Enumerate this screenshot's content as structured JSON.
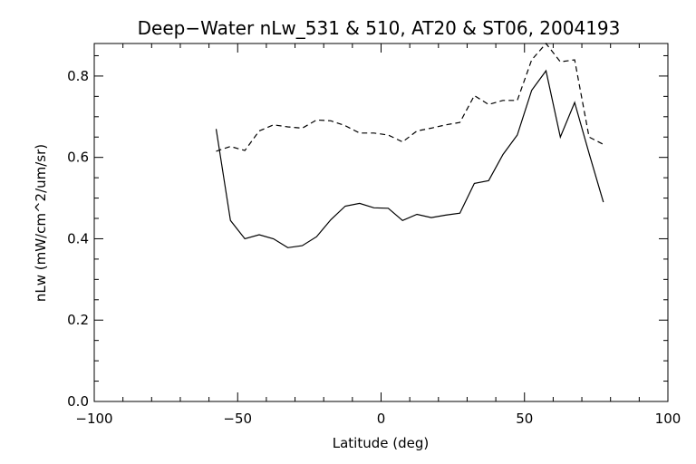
{
  "chart_data": {
    "type": "line",
    "title": "Deep−Water nLw_531 & 510, AT20 & ST06, 2004193",
    "xlabel": "Latitude (deg)",
    "ylabel": "nLw (mW/cm^2/um/sr)",
    "xlim": [
      -100,
      100
    ],
    "ylim": [
      0.0,
      0.88
    ],
    "xticks": [
      -100,
      -50,
      0,
      50,
      100
    ],
    "xtick_labels": [
      "−100",
      "−50",
      "0",
      "50",
      "100"
    ],
    "yticks": [
      0.0,
      0.2,
      0.4,
      0.6,
      0.8
    ],
    "ytick_labels": [
      "0.0",
      "0.2",
      "0.4",
      "0.6",
      "0.8"
    ],
    "grid": false,
    "color": "#000000",
    "series": [
      {
        "style": "solid",
        "x": [
          -57.5,
          -52.5,
          -47.5,
          -42.5,
          -37.5,
          -32.5,
          -27.5,
          -22.5,
          -17.5,
          -12.5,
          -7.5,
          -2.5,
          2.5,
          7.5,
          12.5,
          17.5,
          22.5,
          27.5,
          32.5,
          37.5,
          42.5,
          47.5,
          52.5,
          57.5,
          62.5,
          67.5,
          72.5,
          77.5
        ],
        "y": [
          0.67,
          0.445,
          0.4,
          0.41,
          0.4,
          0.378,
          0.383,
          0.405,
          0.447,
          0.48,
          0.487,
          0.476,
          0.475,
          0.445,
          0.46,
          0.452,
          0.458,
          0.463,
          0.536,
          0.543,
          0.607,
          0.655,
          0.765,
          0.813,
          0.65,
          0.735,
          0.61,
          0.49
        ]
      },
      {
        "style": "dashed",
        "x": [
          -57.5,
          -52.5,
          -47.5,
          -42.5,
          -37.5,
          -32.5,
          -27.5,
          -22.5,
          -17.5,
          -12.5,
          -7.5,
          -2.5,
          2.5,
          7.5,
          12.5,
          17.5,
          22.5,
          27.5,
          32.5,
          37.5,
          42.5,
          47.5,
          52.5,
          57.5,
          62.5,
          67.5,
          72.5,
          77.5
        ],
        "y": [
          0.615,
          0.627,
          0.617,
          0.665,
          0.68,
          0.675,
          0.672,
          0.692,
          0.69,
          0.678,
          0.66,
          0.66,
          0.655,
          0.638,
          0.665,
          0.672,
          0.68,
          0.686,
          0.752,
          0.73,
          0.74,
          0.74,
          0.84,
          0.88,
          0.835,
          0.84,
          0.65,
          0.632
        ]
      }
    ]
  }
}
